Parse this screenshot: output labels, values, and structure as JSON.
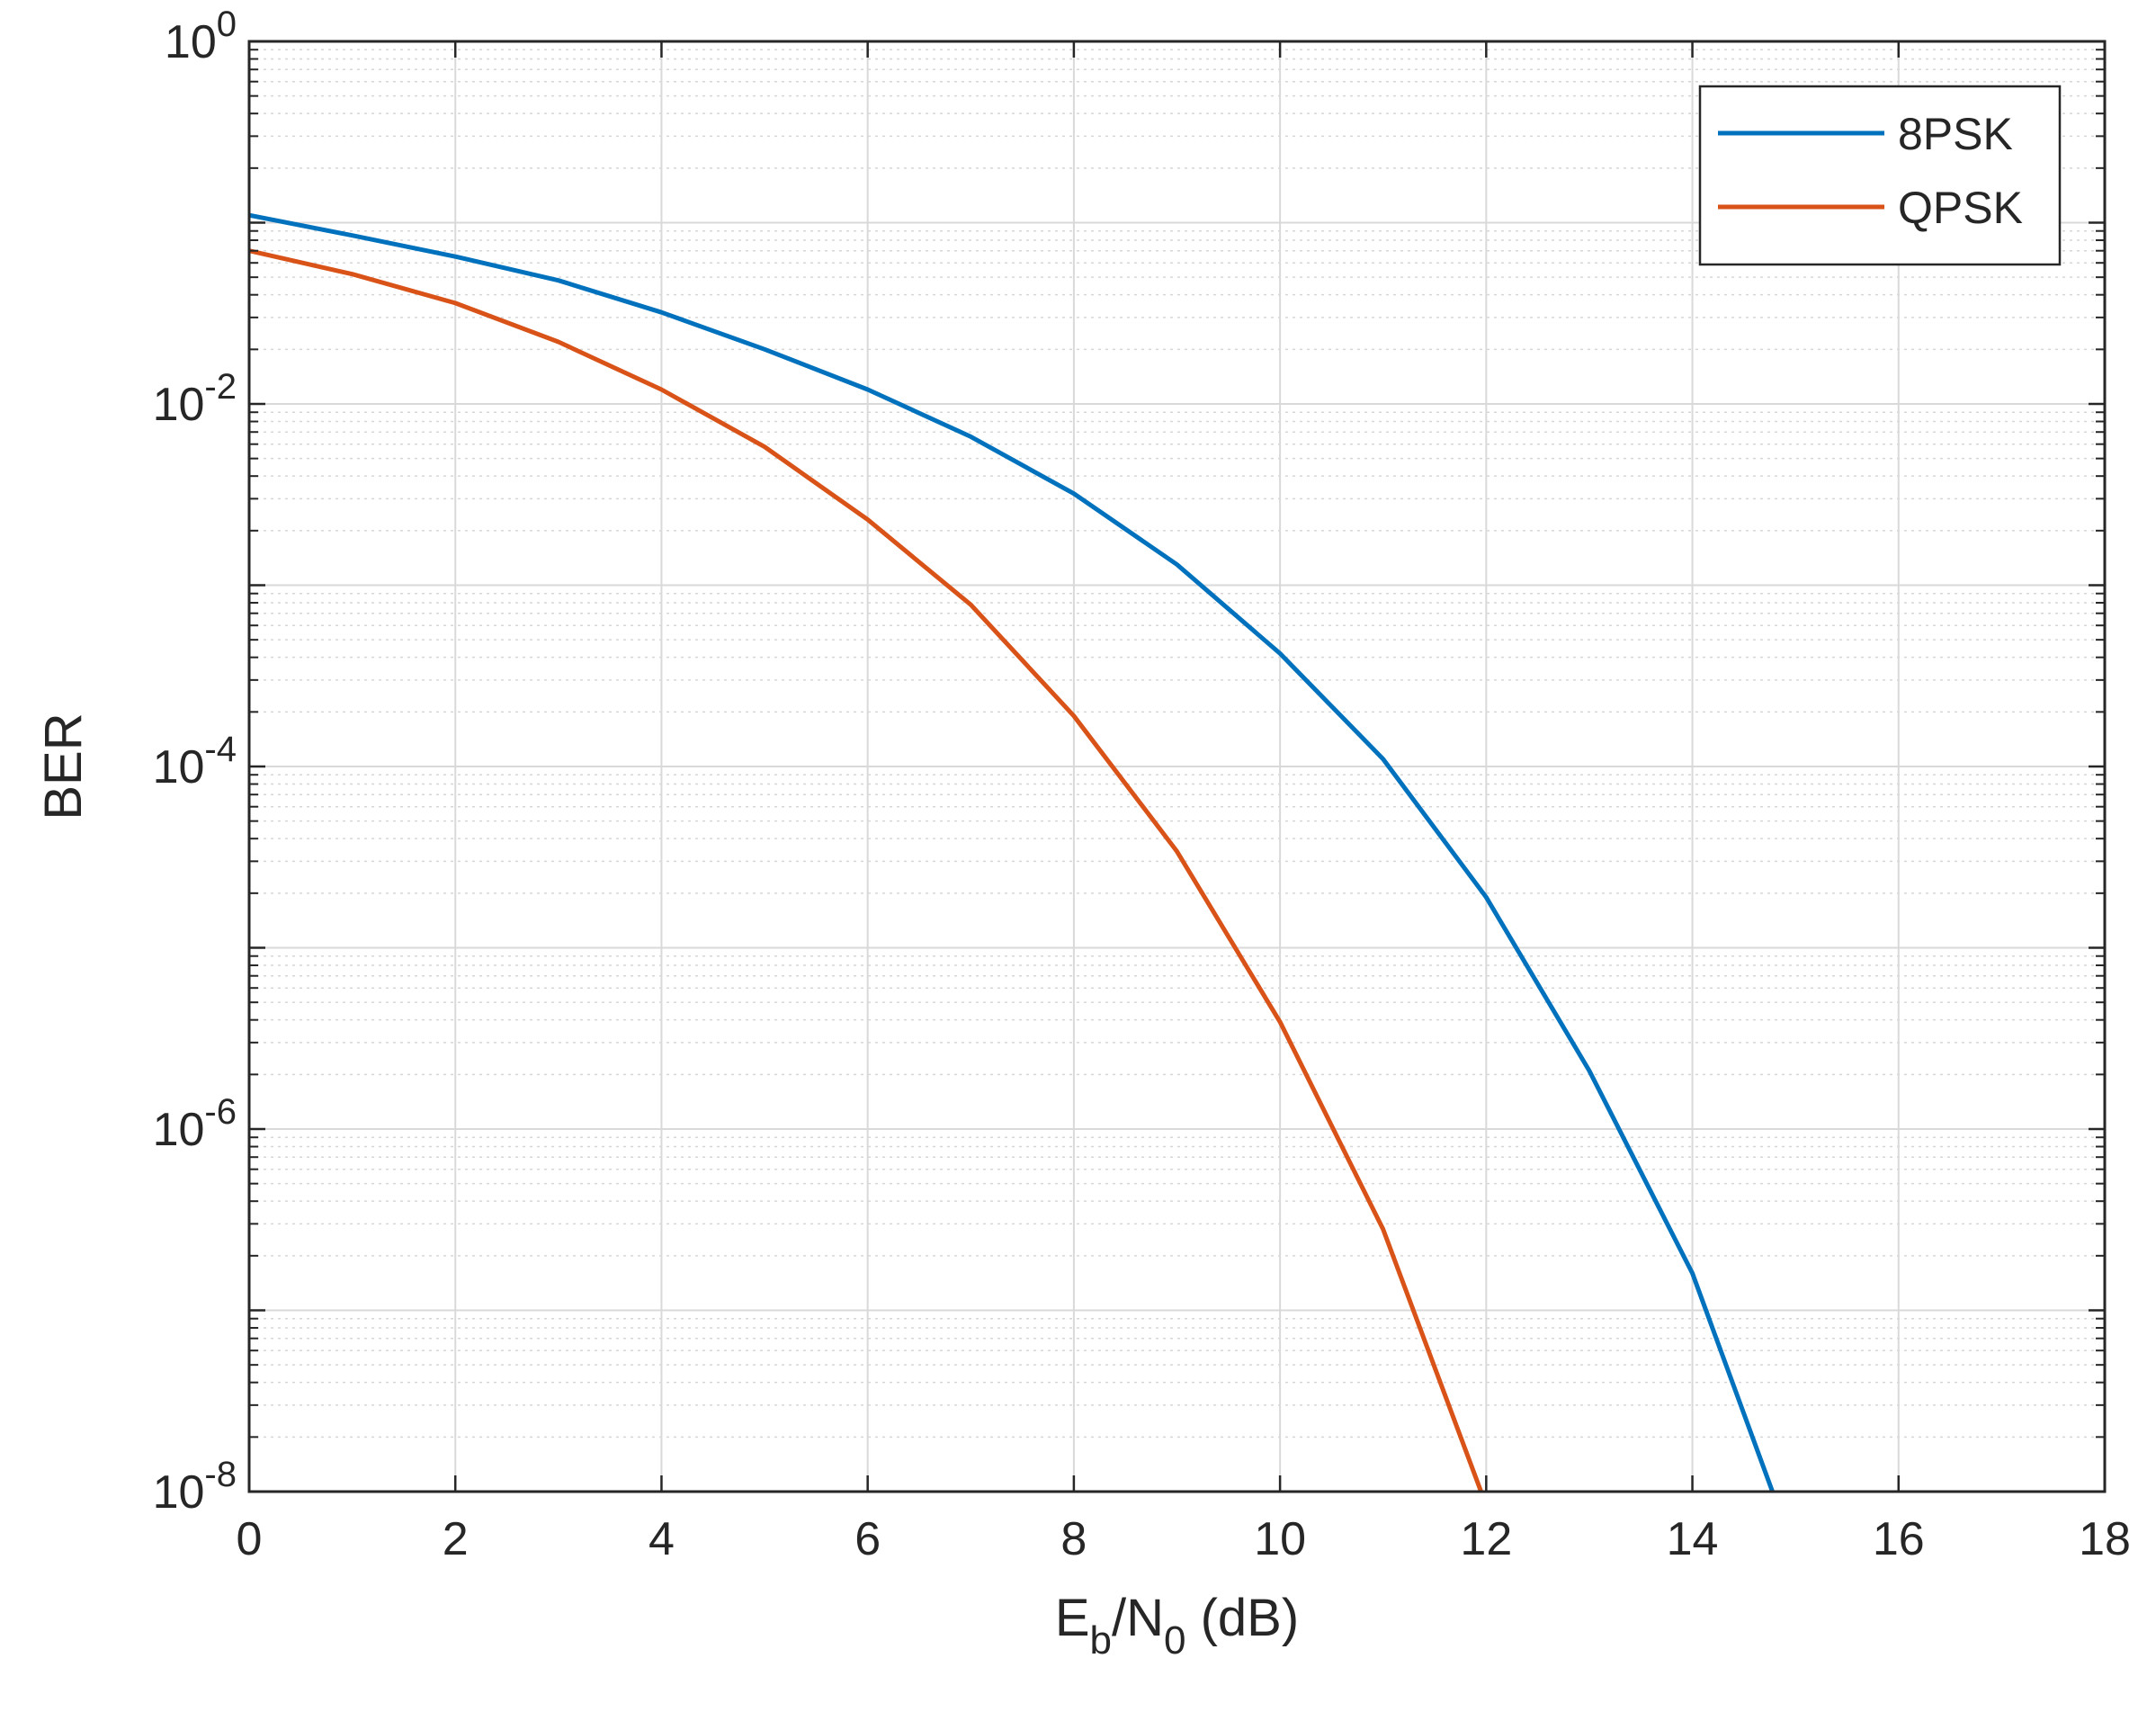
{
  "chart_data": {
    "type": "line",
    "xlabel": {
      "base": "E",
      "sub1": "b",
      "mid": "/N",
      "sub2": "0",
      "tail": " (dB)"
    },
    "ylabel": "BER",
    "xlim": [
      0,
      18
    ],
    "ylim": [
      1e-08,
      1
    ],
    "yscale": "log",
    "grid": true,
    "minor_grid": true,
    "legend_position": "top-right",
    "x_ticks": [
      "0",
      "2",
      "4",
      "6",
      "8",
      "10",
      "12",
      "14",
      "16",
      "18"
    ],
    "y_ticks": [
      {
        "base": "10",
        "exp": "0",
        "value": 1
      },
      {
        "base": "10",
        "exp": "-2",
        "value": 0.01
      },
      {
        "base": "10",
        "exp": "-4",
        "value": 0.0001
      },
      {
        "base": "10",
        "exp": "-6",
        "value": 1e-06
      },
      {
        "base": "10",
        "exp": "-8",
        "value": 1e-08
      }
    ],
    "series": [
      {
        "name": "8PSK",
        "color": "#0072BD",
        "x": [
          0,
          1,
          2,
          3,
          4,
          5,
          6,
          7,
          8,
          9,
          10,
          11,
          12,
          13,
          14,
          15,
          15.4
        ],
        "y": [
          0.11,
          0.085,
          0.065,
          0.048,
          0.032,
          0.02,
          0.012,
          0.0066,
          0.0032,
          0.0013,
          0.00042,
          0.00011,
          1.9e-05,
          2.1e-06,
          1.6e-07,
          4.5e-09,
          1e-08
        ]
      },
      {
        "name": "QPSK",
        "color": "#D95319",
        "x": [
          0,
          1,
          2,
          3,
          4,
          5,
          6,
          7,
          8,
          9,
          10,
          11,
          11.95
        ],
        "y": [
          0.07,
          0.052,
          0.036,
          0.022,
          0.012,
          0.0058,
          0.0023,
          0.00078,
          0.00019,
          3.4e-05,
          3.9e-06,
          2.8e-07,
          1e-08
        ]
      }
    ]
  }
}
